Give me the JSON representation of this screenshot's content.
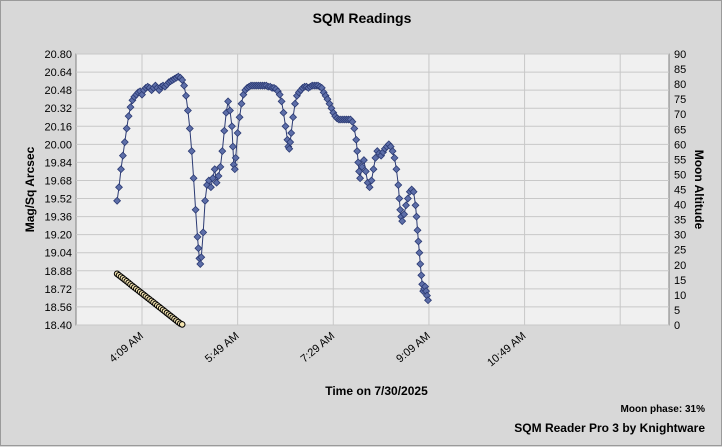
{
  "window": {
    "title": "SQM Readings"
  },
  "footer": {
    "moon_phase": "Moon phase: 31%",
    "credit": "SQM Reader Pro 3 by Knightware"
  },
  "chart_data": {
    "type": "scatter",
    "title": "SQM Readings",
    "xlabel": "Time on 7/30/2025",
    "ylabel": "Mag/Sq Arcsec",
    "y2label": "Moon Altitude",
    "x_minutes": [
      180,
      800
    ],
    "x_ticks": [
      {
        "m": 249,
        "label": "4:09 AM"
      },
      {
        "m": 349,
        "label": "5:49 AM"
      },
      {
        "m": 449,
        "label": "7:29 AM"
      },
      {
        "m": 549,
        "label": "9:09 AM"
      },
      {
        "m": 649,
        "label": "10:49 AM"
      }
    ],
    "x_gridlines": [
      249,
      349,
      449,
      549,
      649,
      749
    ],
    "ylim": [
      18.4,
      20.8
    ],
    "y_ticks": [
      "18.40",
      "18.56",
      "18.72",
      "18.88",
      "19.04",
      "19.20",
      "19.36",
      "19.52",
      "19.68",
      "19.84",
      "20.00",
      "20.16",
      "20.32",
      "20.48",
      "20.64",
      "20.80"
    ],
    "y2lim": [
      0,
      90
    ],
    "y2_ticks": [
      "0",
      "5",
      "10",
      "15",
      "20",
      "25",
      "30",
      "35",
      "40",
      "45",
      "50",
      "55",
      "60",
      "65",
      "70",
      "75",
      "80",
      "85",
      "90"
    ],
    "colors": {
      "sqm_fill": "#5d6ea8",
      "sqm_line": "#2b3a73",
      "moon_fill": "#f4e4b0",
      "moon_line": "#000000",
      "plot_bg": "#f0f0f0",
      "grid": "#c8c8c8"
    },
    "series": [
      {
        "name": "SQM",
        "axis": "left",
        "points": [
          [
            223,
            19.5
          ],
          [
            225,
            19.62
          ],
          [
            227,
            19.78
          ],
          [
            229,
            19.9
          ],
          [
            231,
            20.02
          ],
          [
            233,
            20.14
          ],
          [
            235,
            20.25
          ],
          [
            237,
            20.33
          ],
          [
            239,
            20.39
          ],
          [
            241,
            20.42
          ],
          [
            243,
            20.44
          ],
          [
            245,
            20.46
          ],
          [
            247,
            20.47
          ],
          [
            249,
            20.44
          ],
          [
            251,
            20.48
          ],
          [
            253,
            20.5
          ],
          [
            255,
            20.51
          ],
          [
            257,
            20.5
          ],
          [
            259,
            20.48
          ],
          [
            261,
            20.5
          ],
          [
            263,
            20.52
          ],
          [
            265,
            20.5
          ],
          [
            267,
            20.48
          ],
          [
            269,
            20.51
          ],
          [
            271,
            20.52
          ],
          [
            273,
            20.51
          ],
          [
            275,
            20.53
          ],
          [
            277,
            20.55
          ],
          [
            279,
            20.56
          ],
          [
            281,
            20.57
          ],
          [
            283,
            20.58
          ],
          [
            285,
            20.59
          ],
          [
            287,
            20.6
          ],
          [
            289,
            20.59
          ],
          [
            291,
            20.57
          ],
          [
            293,
            20.52
          ],
          [
            295,
            20.43
          ],
          [
            297,
            20.3
          ],
          [
            299,
            20.14
          ],
          [
            301,
            19.94
          ],
          [
            303,
            19.7
          ],
          [
            305,
            19.42
          ],
          [
            307,
            19.18
          ],
          [
            308,
            19.08
          ],
          [
            309,
            18.99
          ],
          [
            310,
            18.94
          ],
          [
            311,
            19.0
          ],
          [
            313,
            19.22
          ],
          [
            315,
            19.5
          ],
          [
            317,
            19.64
          ],
          [
            319,
            19.68
          ],
          [
            321,
            19.62
          ],
          [
            323,
            19.7
          ],
          [
            325,
            19.78
          ],
          [
            327,
            19.66
          ],
          [
            329,
            19.72
          ],
          [
            331,
            19.8
          ],
          [
            333,
            19.94
          ],
          [
            335,
            20.12
          ],
          [
            337,
            20.28
          ],
          [
            339,
            20.38
          ],
          [
            341,
            20.3
          ],
          [
            343,
            20.16
          ],
          [
            344,
            19.98
          ],
          [
            345,
            19.82
          ],
          [
            346,
            19.78
          ],
          [
            347,
            19.88
          ],
          [
            349,
            20.1
          ],
          [
            351,
            20.24
          ],
          [
            353,
            20.36
          ],
          [
            355,
            20.44
          ],
          [
            357,
            20.48
          ],
          [
            359,
            20.5
          ],
          [
            361,
            20.51
          ],
          [
            363,
            20.52
          ],
          [
            365,
            20.52
          ],
          [
            367,
            20.52
          ],
          [
            369,
            20.52
          ],
          [
            371,
            20.52
          ],
          [
            373,
            20.52
          ],
          [
            375,
            20.52
          ],
          [
            377,
            20.52
          ],
          [
            379,
            20.52
          ],
          [
            381,
            20.51
          ],
          [
            383,
            20.51
          ],
          [
            385,
            20.5
          ],
          [
            387,
            20.5
          ],
          [
            389,
            20.49
          ],
          [
            391,
            20.47
          ],
          [
            393,
            20.44
          ],
          [
            395,
            20.38
          ],
          [
            397,
            20.28
          ],
          [
            399,
            20.16
          ],
          [
            401,
            20.04
          ],
          [
            402,
            19.98
          ],
          [
            403,
            19.96
          ],
          [
            404,
            20.02
          ],
          [
            405,
            20.1
          ],
          [
            407,
            20.24
          ],
          [
            409,
            20.36
          ],
          [
            411,
            20.43
          ],
          [
            413,
            20.46
          ],
          [
            415,
            20.48
          ],
          [
            417,
            20.5
          ],
          [
            419,
            20.51
          ],
          [
            421,
            20.51
          ],
          [
            423,
            20.5
          ],
          [
            425,
            20.51
          ],
          [
            427,
            20.52
          ],
          [
            429,
            20.52
          ],
          [
            431,
            20.52
          ],
          [
            433,
            20.52
          ],
          [
            435,
            20.51
          ],
          [
            437,
            20.5
          ],
          [
            439,
            20.46
          ],
          [
            441,
            20.43
          ],
          [
            443,
            20.4
          ],
          [
            445,
            20.36
          ],
          [
            447,
            20.32
          ],
          [
            449,
            20.28
          ],
          [
            451,
            20.25
          ],
          [
            453,
            20.23
          ],
          [
            455,
            20.22
          ],
          [
            457,
            20.22
          ],
          [
            459,
            20.22
          ],
          [
            461,
            20.22
          ],
          [
            463,
            20.22
          ],
          [
            465,
            20.22
          ],
          [
            467,
            20.22
          ],
          [
            469,
            20.2
          ],
          [
            471,
            20.14
          ],
          [
            473,
            20.04
          ],
          [
            474,
            19.94
          ],
          [
            475,
            19.84
          ],
          [
            476,
            19.76
          ],
          [
            477,
            19.7
          ],
          [
            479,
            19.8
          ],
          [
            481,
            19.86
          ],
          [
            483,
            19.76
          ],
          [
            485,
            19.66
          ],
          [
            487,
            19.62
          ],
          [
            489,
            19.68
          ],
          [
            491,
            19.78
          ],
          [
            493,
            19.88
          ],
          [
            495,
            19.94
          ],
          [
            497,
            19.92
          ],
          [
            499,
            19.9
          ],
          [
            501,
            19.93
          ],
          [
            503,
            19.96
          ],
          [
            505,
            19.98
          ],
          [
            507,
            20.0
          ],
          [
            509,
            19.98
          ],
          [
            511,
            19.94
          ],
          [
            513,
            19.88
          ],
          [
            515,
            19.78
          ],
          [
            517,
            19.64
          ],
          [
            518,
            19.52
          ],
          [
            519,
            19.42
          ],
          [
            520,
            19.36
          ],
          [
            521,
            19.32
          ],
          [
            523,
            19.38
          ],
          [
            525,
            19.46
          ],
          [
            527,
            19.52
          ],
          [
            529,
            19.58
          ],
          [
            531,
            19.6
          ],
          [
            533,
            19.58
          ],
          [
            535,
            19.46
          ],
          [
            536,
            19.36
          ],
          [
            537,
            19.24
          ],
          [
            538,
            19.14
          ],
          [
            539,
            19.04
          ],
          [
            540,
            18.94
          ],
          [
            541,
            18.84
          ],
          [
            542,
            18.76
          ],
          [
            543,
            18.7
          ],
          [
            544,
            18.72
          ],
          [
            545,
            18.74
          ],
          [
            546,
            18.7
          ],
          [
            547,
            18.66
          ],
          [
            548,
            18.62
          ]
        ]
      },
      {
        "name": "Moon Altitude",
        "axis": "right",
        "points": [
          [
            223,
            17
          ],
          [
            225,
            16.5
          ],
          [
            227,
            16
          ],
          [
            229,
            15.5
          ],
          [
            231,
            15
          ],
          [
            233,
            14.5
          ],
          [
            235,
            14
          ],
          [
            237,
            13.5
          ],
          [
            239,
            13
          ],
          [
            241,
            12.5
          ],
          [
            243,
            12
          ],
          [
            245,
            11.5
          ],
          [
            247,
            11
          ],
          [
            249,
            10.5
          ],
          [
            251,
            10
          ],
          [
            253,
            9.5
          ],
          [
            255,
            9
          ],
          [
            257,
            8.5
          ],
          [
            259,
            8
          ],
          [
            261,
            7.5
          ],
          [
            263,
            7
          ],
          [
            265,
            6.5
          ],
          [
            267,
            6
          ],
          [
            269,
            5.5
          ],
          [
            271,
            5
          ],
          [
            273,
            4.5
          ],
          [
            275,
            4
          ],
          [
            277,
            3.5
          ],
          [
            279,
            3
          ],
          [
            281,
            2.5
          ],
          [
            283,
            2
          ],
          [
            285,
            1.5
          ],
          [
            287,
            1
          ],
          [
            289,
            0.5
          ],
          [
            291,
            0.2
          ]
        ]
      }
    ]
  }
}
